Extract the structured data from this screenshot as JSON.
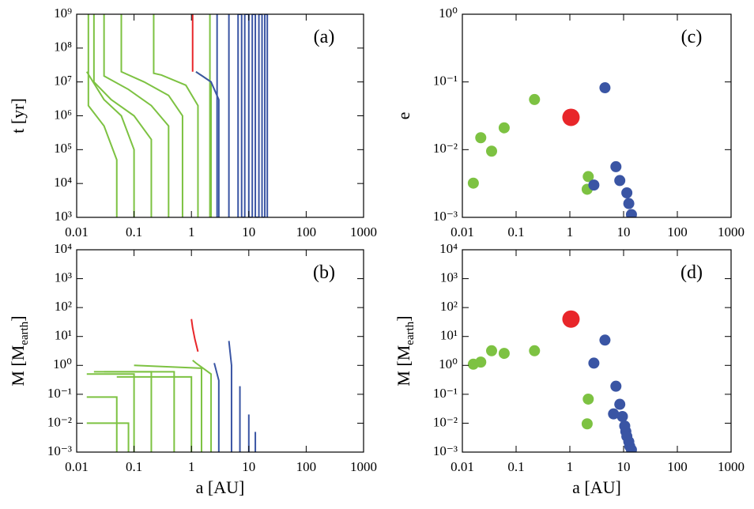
{
  "chart_data": [
    {
      "type": "line",
      "panel_label": "(a)",
      "ylabel": [
        "t [yr]"
      ],
      "xscale": "log",
      "yscale": "log",
      "xlim": [
        0.01,
        1000
      ],
      "ylim": [
        1000,
        1000000000
      ],
      "xticks": [
        0.01,
        0.1,
        1,
        10,
        100,
        1000
      ],
      "yticks": [
        {
          "value": 1000,
          "label": "10³"
        },
        {
          "value": 10000,
          "label": "10⁴"
        },
        {
          "value": 100000,
          "label": "10⁵"
        },
        {
          "value": 1000000,
          "label": "10⁶"
        },
        {
          "value": 10000000,
          "label": "10⁷"
        },
        {
          "value": 100000000,
          "label": "10⁸"
        },
        {
          "value": 1000000000,
          "label": "10⁹"
        }
      ],
      "series": [
        {
          "color": "#7dc242",
          "x": [
            0.05,
            0.05,
            0.03,
            0.016,
            0.016
          ],
          "y": [
            1000,
            50000,
            500000,
            2000000,
            1000000000
          ]
        },
        {
          "color": "#7dc242",
          "x": [
            0.1,
            0.1,
            0.06,
            0.03,
            0.015
          ],
          "y": [
            1000,
            100000,
            1000000,
            3000000,
            20000000
          ]
        },
        {
          "color": "#7dc242",
          "x": [
            0.2,
            0.2,
            0.1,
            0.04,
            0.02,
            0.02
          ],
          "y": [
            1000,
            200000,
            1000000,
            3000000,
            10000000,
            1000000000
          ]
        },
        {
          "color": "#7dc242",
          "x": [
            0.4,
            0.4,
            0.2,
            0.08,
            0.03,
            0.03
          ],
          "y": [
            1000,
            500000,
            2000000,
            6000000,
            15000000,
            1000000000
          ]
        },
        {
          "color": "#7dc242",
          "x": [
            0.7,
            0.7,
            0.4,
            0.15,
            0.06,
            0.06
          ],
          "y": [
            1000,
            1000000,
            4000000,
            10000000,
            20000000,
            1000000000
          ]
        },
        {
          "color": "#7dc242",
          "x": [
            1.3,
            1.3,
            0.8,
            0.3,
            0.22,
            0.22
          ],
          "y": [
            1000,
            2000000,
            8000000,
            16000000,
            18000000,
            1000000000
          ]
        },
        {
          "color": "#7dc242",
          "x": [
            2.2,
            2.2,
            1.2
          ],
          "y": [
            1000,
            10000000,
            20000000
          ]
        },
        {
          "color": "#7dc242",
          "x": [
            2.1,
            2.1
          ],
          "y": [
            1000,
            1000000000
          ]
        },
        {
          "color": "#3a55a4",
          "x": [
            3,
            3,
            2.2,
            1.2
          ],
          "y": [
            1000,
            3000000,
            10000000,
            20000000
          ]
        },
        {
          "color": "#3a55a4",
          "x": [
            2.8,
            2.8
          ],
          "y": [
            1000,
            1000000000
          ]
        },
        {
          "color": "#3a55a4",
          "x": [
            4.5,
            4.5
          ],
          "y": [
            1000,
            1000000000
          ]
        },
        {
          "color": "#3a55a4",
          "x": [
            6.5,
            6.5,
            7.5,
            7.5,
            8.5,
            8.5,
            10,
            10,
            11.5,
            11.5,
            13,
            13,
            15,
            15,
            17,
            17,
            19,
            19,
            21,
            21
          ],
          "y": [
            1000,
            1000000000,
            1000000000,
            1000,
            1000,
            1000000000,
            1000000000,
            1000,
            1000,
            1000000000,
            1000000000,
            1000,
            1000,
            1000000000,
            1000000000,
            1000,
            1000,
            1000000000,
            1000000000,
            1000
          ]
        },
        {
          "color": "#e8262a",
          "x": [
            1.05,
            1.05
          ],
          "y": [
            20000000,
            1000000000
          ]
        }
      ]
    },
    {
      "type": "line",
      "panel_label": "(b)",
      "ylabel": [
        "M [M",
        "earth",
        "]"
      ],
      "xlabel": "a [AU]",
      "xscale": "log",
      "yscale": "log",
      "xlim": [
        0.01,
        1000
      ],
      "ylim": [
        0.001,
        10000
      ],
      "xticks": [
        0.01,
        0.1,
        1,
        10,
        100,
        1000
      ],
      "yticks": [
        {
          "value": 0.001,
          "label": "10⁻³"
        },
        {
          "value": 0.01,
          "label": "10⁻²"
        },
        {
          "value": 0.1,
          "label": "10⁻¹"
        },
        {
          "value": 1,
          "label": "10⁰"
        },
        {
          "value": 10,
          "label": "10¹"
        },
        {
          "value": 100,
          "label": "10²"
        },
        {
          "value": 1000,
          "label": "10³"
        },
        {
          "value": 10000,
          "label": "10⁴"
        }
      ],
      "series": [
        {
          "color": "#7dc242",
          "x": [
            0.1,
            0.1,
            0.015
          ],
          "y": [
            0.001,
            0.5,
            0.5
          ]
        },
        {
          "color": "#7dc242",
          "x": [
            0.2,
            0.2,
            0.02
          ],
          "y": [
            0.001,
            0.6,
            0.6
          ]
        },
        {
          "color": "#7dc242",
          "x": [
            0.5,
            0.5,
            0.03
          ],
          "y": [
            0.001,
            0.6,
            0.6
          ]
        },
        {
          "color": "#7dc242",
          "x": [
            1,
            1,
            0.05
          ],
          "y": [
            0.001,
            0.4,
            0.4
          ]
        },
        {
          "color": "#7dc242",
          "x": [
            1.5,
            1.5,
            0.1,
            0.1
          ],
          "y": [
            0.001,
            0.8,
            1,
            1
          ]
        },
        {
          "color": "#7dc242",
          "x": [
            2.2,
            2.2,
            1.2,
            1.05
          ],
          "y": [
            0.001,
            0.5,
            1.2,
            1.5
          ]
        },
        {
          "color": "#7dc242",
          "x": [
            0.05,
            0.05,
            0.015
          ],
          "y": [
            0.001,
            0.08,
            0.08
          ]
        },
        {
          "color": "#7dc242",
          "x": [
            0.08,
            0.08,
            0.015
          ],
          "y": [
            0.001,
            0.01,
            0.01
          ]
        },
        {
          "color": "#3a55a4",
          "x": [
            3,
            3,
            2.5
          ],
          "y": [
            0.001,
            0.3,
            1.2
          ]
        },
        {
          "color": "#3a55a4",
          "x": [
            5,
            5,
            4.5
          ],
          "y": [
            0.001,
            1,
            7
          ]
        },
        {
          "color": "#3a55a4",
          "x": [
            7,
            7
          ],
          "y": [
            0.001,
            0.19
          ]
        },
        {
          "color": "#3a55a4",
          "x": [
            10,
            10
          ],
          "y": [
            0.001,
            0.02
          ]
        },
        {
          "color": "#3a55a4",
          "x": [
            13,
            13
          ],
          "y": [
            0.001,
            0.005
          ]
        },
        {
          "color": "#e8262a",
          "x": [
            1.3,
            1.15,
            1.05,
            1
          ],
          "y": [
            3,
            8,
            20,
            40
          ]
        }
      ]
    },
    {
      "type": "scatter",
      "panel_label": "(c)",
      "ylabel": [
        "e"
      ],
      "xscale": "log",
      "yscale": "log",
      "xlim": [
        0.01,
        1000
      ],
      "ylim": [
        0.001,
        1
      ],
      "xticks": [
        0.01,
        0.1,
        1,
        10,
        100,
        1000
      ],
      "yticks": [
        {
          "value": 0.001,
          "label": "10⁻³"
        },
        {
          "value": 0.01,
          "label": "10⁻²"
        },
        {
          "value": 0.1,
          "label": "10⁻¹"
        },
        {
          "value": 1,
          "label": "10⁰"
        }
      ],
      "series": [
        {
          "color": "#7dc242",
          "size": 7,
          "x": [
            0.016,
            0.022,
            0.035,
            0.06,
            0.22,
            2.2,
            2.1
          ],
          "y": [
            0.0032,
            0.015,
            0.0095,
            0.021,
            0.055,
            0.004,
            0.0026
          ]
        },
        {
          "color": "#e8262a",
          "size": 11,
          "x": [
            1.05
          ],
          "y": [
            0.03
          ]
        },
        {
          "color": "#3a55a4",
          "size": 7,
          "x": [
            4.5,
            2.8,
            7.2,
            8.5,
            11.5,
            12.5,
            14
          ],
          "y": [
            0.082,
            0.003,
            0.0056,
            0.0035,
            0.0023,
            0.0016,
            0.0011
          ]
        }
      ]
    },
    {
      "type": "scatter",
      "panel_label": "(d)",
      "ylabel": [
        "M [M",
        "earth",
        "]"
      ],
      "xlabel": "a [AU]",
      "xscale": "log",
      "yscale": "log",
      "xlim": [
        0.01,
        1000
      ],
      "ylim": [
        0.001,
        10000
      ],
      "xticks": [
        0.01,
        0.1,
        1,
        10,
        100,
        1000
      ],
      "yticks": [
        {
          "value": 0.001,
          "label": "10⁻³"
        },
        {
          "value": 0.01,
          "label": "10⁻²"
        },
        {
          "value": 0.1,
          "label": "10⁻¹"
        },
        {
          "value": 1,
          "label": "10⁰"
        },
        {
          "value": 10,
          "label": "10¹"
        },
        {
          "value": 100,
          "label": "10²"
        },
        {
          "value": 1000,
          "label": "10³"
        },
        {
          "value": 10000,
          "label": "10⁴"
        }
      ],
      "series": [
        {
          "color": "#7dc242",
          "size": 7,
          "x": [
            0.016,
            0.022,
            0.035,
            0.06,
            0.22,
            2.2,
            2.1
          ],
          "y": [
            1.1,
            1.3,
            3.2,
            2.6,
            3.2,
            0.068,
            0.0095
          ]
        },
        {
          "color": "#e8262a",
          "size": 11,
          "x": [
            1.05
          ],
          "y": [
            40
          ]
        },
        {
          "color": "#3a55a4",
          "size": 7,
          "x": [
            4.5,
            2.8,
            7.2,
            8.5,
            6.5,
            9.5,
            10.5,
            11,
            11.5,
            12.5,
            13,
            14
          ],
          "y": [
            7.5,
            1.2,
            0.19,
            0.045,
            0.021,
            0.017,
            0.008,
            0.0052,
            0.0035,
            0.0023,
            0.0016,
            0.0012
          ]
        }
      ]
    }
  ]
}
